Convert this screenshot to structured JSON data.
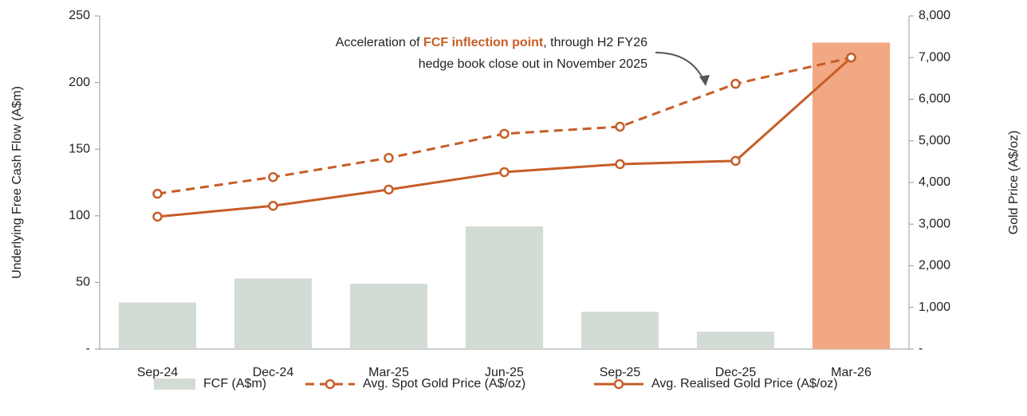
{
  "chart_data": {
    "type": "bar_line",
    "y_label": "Underlying Free Cash Flow (A$m)",
    "y2_label": "Gold Price (A$/oz)",
    "categories": [
      "Sep-24",
      "Dec-24",
      "Mar-25",
      "Jun-25",
      "Sep-25",
      "Dec-25",
      "Mar-26"
    ],
    "series": [
      {
        "name": "FCF (A$m)",
        "kind": "bar",
        "color": "#d3dbd5",
        "colors": [
          "#d3dbd5",
          "#d3dbd5",
          "#d3dbd5",
          "#d3dbd5",
          "#d3dbd5",
          "#d3dbd5",
          "#f2a882"
        ],
        "values": [
          35,
          53,
          49,
          92,
          28,
          13,
          230
        ]
      },
      {
        "name": "Avg. Spot Gold Price (A$/oz)",
        "kind": "line",
        "dashed": true,
        "axis": "y2",
        "color": "#c65d28",
        "values": [
          3730,
          4130,
          4590,
          5170,
          5340,
          6370,
          7000
        ]
      },
      {
        "name": "Avg. Realised Gold Price (A$/oz)",
        "kind": "line",
        "dashed": false,
        "axis": "y2",
        "color": "#c65d28",
        "values": [
          3180,
          3440,
          3830,
          4250,
          4440,
          4520,
          7000
        ]
      }
    ],
    "ylim": [
      0,
      250
    ],
    "yticks": [
      {
        "value": 0,
        "label": "-"
      },
      50,
      100,
      150,
      200,
      250
    ],
    "y2lim": [
      0,
      8000
    ],
    "y2ticks": [
      {
        "value": 0,
        "label": "-"
      },
      {
        "value": 1000,
        "label": "1,000"
      },
      {
        "value": 2000,
        "label": "2,000"
      },
      {
        "value": 3000,
        "label": "3,000"
      },
      {
        "value": 4000,
        "label": "4,000"
      },
      {
        "value": 5000,
        "label": "5,000"
      },
      {
        "value": 6000,
        "label": "6,000"
      },
      {
        "value": 7000,
        "label": "7,000"
      },
      {
        "value": 8000,
        "label": "8,000"
      }
    ],
    "annotation": {
      "lines": [
        [
          "Acceleration of ",
          "FCF inflection point",
          ", through H2 FY26"
        ],
        [
          "hedge book close out in November 2025"
        ]
      ],
      "highlight_color": "#c65d28"
    },
    "legend": "bottom"
  }
}
